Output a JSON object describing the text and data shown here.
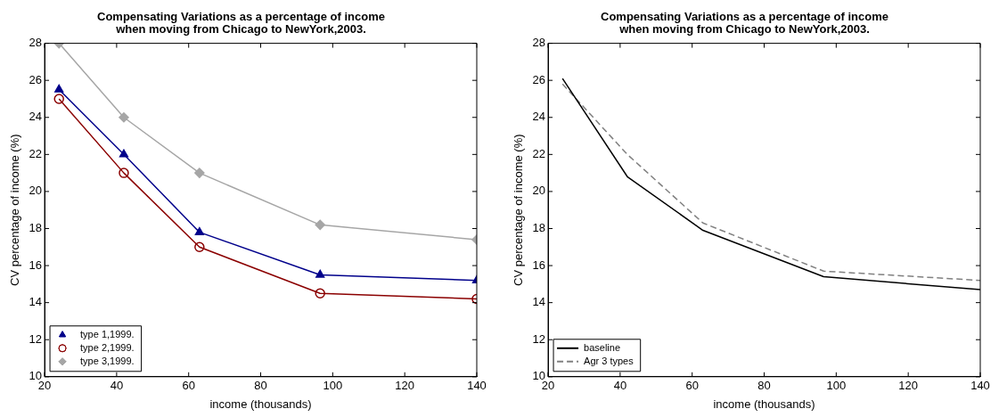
{
  "chart_data": [
    {
      "type": "line",
      "title": "Compensating Variations as a percentage of income\nwhen moving from Chicago to NewYork,2003.",
      "xlabel": "income (thousands)",
      "ylabel": "CV percentage of income (%)",
      "x": [
        24,
        42,
        63,
        96.5,
        140
      ],
      "series": [
        {
          "name": "type 1,1999.",
          "color": "#00008b",
          "marker": "triangle",
          "values": [
            25.5,
            22,
            17.8,
            15.5,
            15.2
          ]
        },
        {
          "name": "type 2,1999.",
          "color": "#8b0000",
          "marker": "circle",
          "values": [
            25,
            21,
            17,
            14.5,
            14.2
          ]
        },
        {
          "name": "type 3,1999.",
          "color": "#a6a6a6",
          "marker": "diamond",
          "values": [
            28,
            24,
            21,
            18.2,
            17.4
          ]
        }
      ],
      "xlim": [
        20,
        140
      ],
      "xticks": [
        20,
        40,
        60,
        80,
        100,
        120,
        140
      ],
      "ylim": [
        10,
        28
      ],
      "yticks": [
        10,
        12,
        14,
        16,
        18,
        20,
        22,
        24,
        26,
        28
      ],
      "grid": false,
      "legend": "bottom left"
    },
    {
      "type": "line",
      "title": "Compensating Variations as a percentage of income\nwhen moving from Chicago to NewYork,2003.",
      "xlabel": "income (thousands)",
      "ylabel": "CV percentage of income (%)",
      "x": [
        24,
        42,
        63,
        96.5,
        140
      ],
      "series": [
        {
          "name": "baseline",
          "color": "#000000",
          "line_style": "solid",
          "values": [
            26.1,
            20.8,
            17.9,
            15.4,
            14.7
          ]
        },
        {
          "name": "Agr 3 types",
          "color": "#808080",
          "line_style": "dashed",
          "values": [
            25.8,
            22,
            18.3,
            15.7,
            15.2
          ]
        }
      ],
      "xlim": [
        20,
        140
      ],
      "xticks": [
        20,
        40,
        60,
        80,
        100,
        120,
        140
      ],
      "ylim": [
        10,
        28
      ],
      "yticks": [
        10,
        12,
        14,
        16,
        18,
        20,
        22,
        24,
        26,
        28
      ],
      "grid": false,
      "legend": "bottom left"
    }
  ]
}
